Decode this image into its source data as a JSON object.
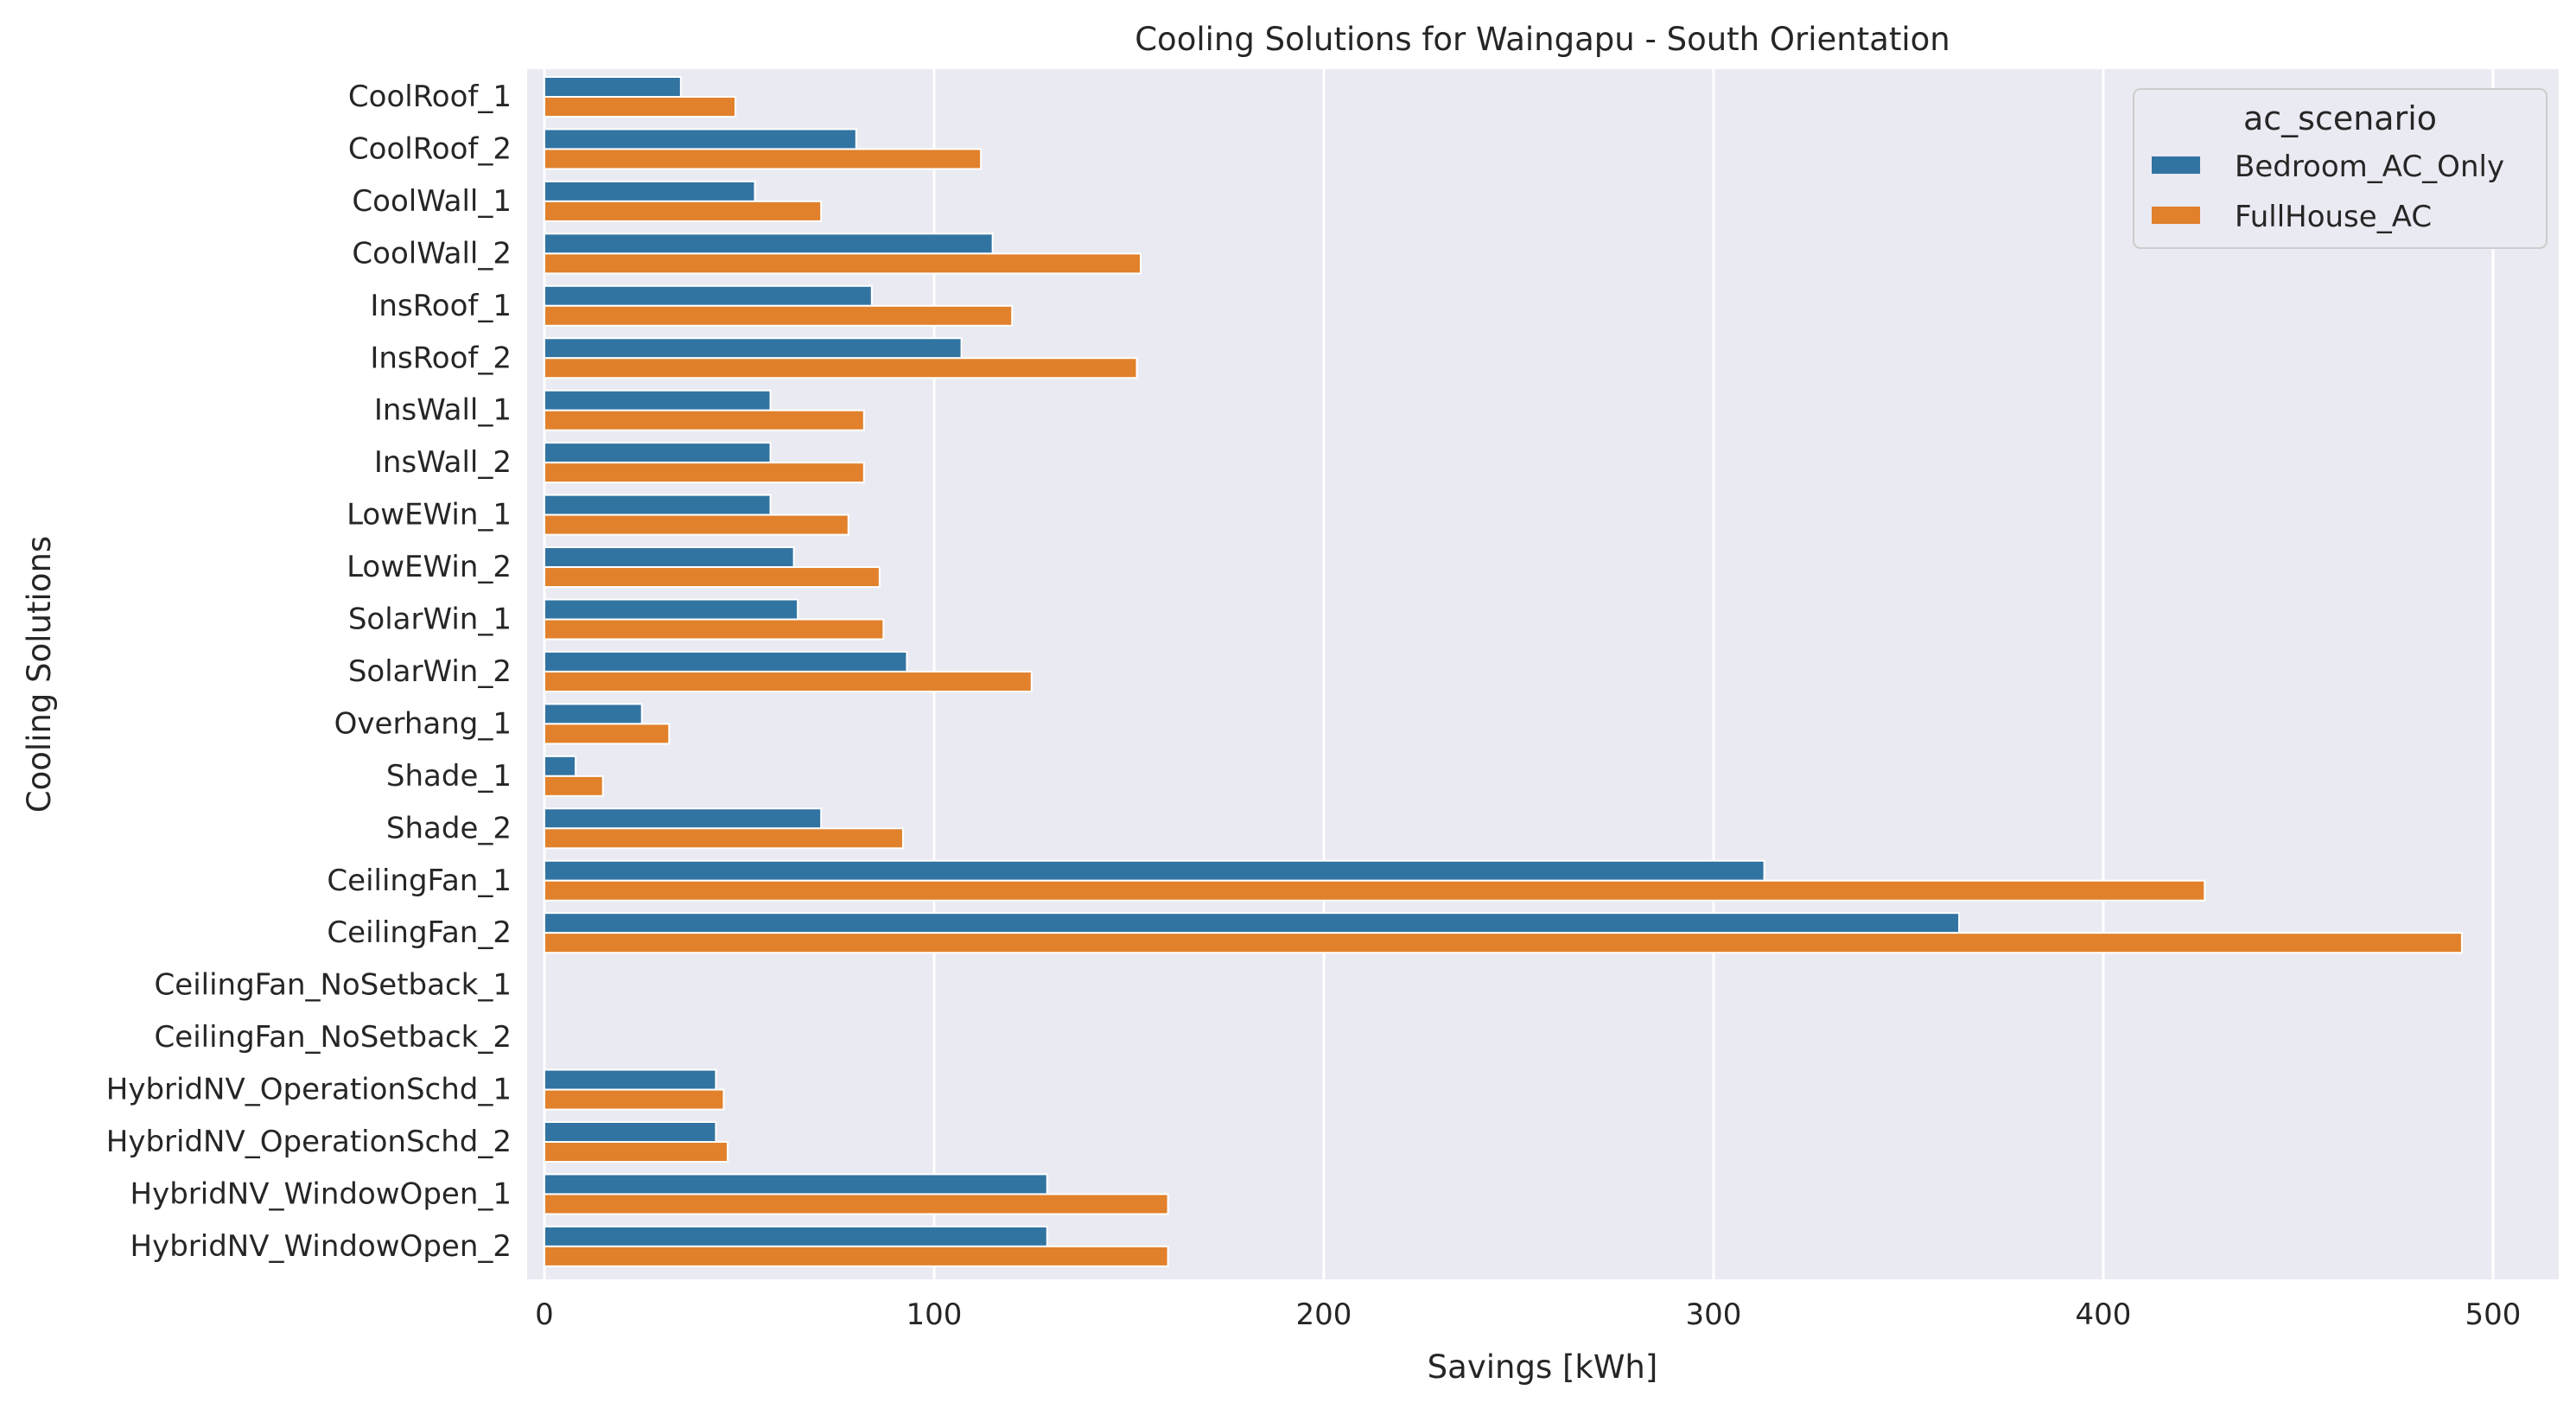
{
  "chart_data": {
    "type": "bar",
    "orientation": "horizontal",
    "title": "Cooling Solutions for Waingapu - South Orientation",
    "xlabel": "Savings [kWh]",
    "ylabel": "Cooling Solutions",
    "xlim": [
      0,
      515
    ],
    "xticks": [
      0,
      100,
      200,
      300,
      400,
      500
    ],
    "grid": true,
    "legend": {
      "title": "ac_scenario",
      "placement": "top-right"
    },
    "categories": [
      "CoolRoof_1",
      "CoolRoof_2",
      "CoolWall_1",
      "CoolWall_2",
      "InsRoof_1",
      "InsRoof_2",
      "InsWall_1",
      "InsWall_2",
      "LowEWin_1",
      "LowEWin_2",
      "SolarWin_1",
      "SolarWin_2",
      "Overhang_1",
      "Shade_1",
      "Shade_2",
      "CeilingFan_1",
      "CeilingFan_2",
      "CeilingFan_NoSetback_1",
      "CeilingFan_NoSetback_2",
      "HybridNV_OperationSchd_1",
      "HybridNV_OperationSchd_2",
      "HybridNV_WindowOpen_1",
      "HybridNV_WindowOpen_2"
    ],
    "series": [
      {
        "name": "Bedroom_AC_Only",
        "color": "#3274a1",
        "values": [
          35,
          80,
          54,
          115,
          84,
          107,
          58,
          58,
          58,
          64,
          65,
          93,
          25,
          8,
          71,
          313,
          363,
          0,
          0,
          44,
          44,
          129,
          129
        ]
      },
      {
        "name": "FullHouse_AC",
        "color": "#e1812c",
        "values": [
          49,
          112,
          71,
          153,
          120,
          152,
          82,
          82,
          78,
          86,
          87,
          125,
          32,
          15,
          92,
          426,
          492,
          0,
          0,
          46,
          47,
          160,
          160
        ]
      }
    ]
  },
  "style": {
    "plot_background": "#eaeaf2",
    "grid_color": "#ffffff",
    "bar_edge_color": "#ffffff",
    "legend_background": "#eaeaf2",
    "legend_border": "#cccccc"
  }
}
